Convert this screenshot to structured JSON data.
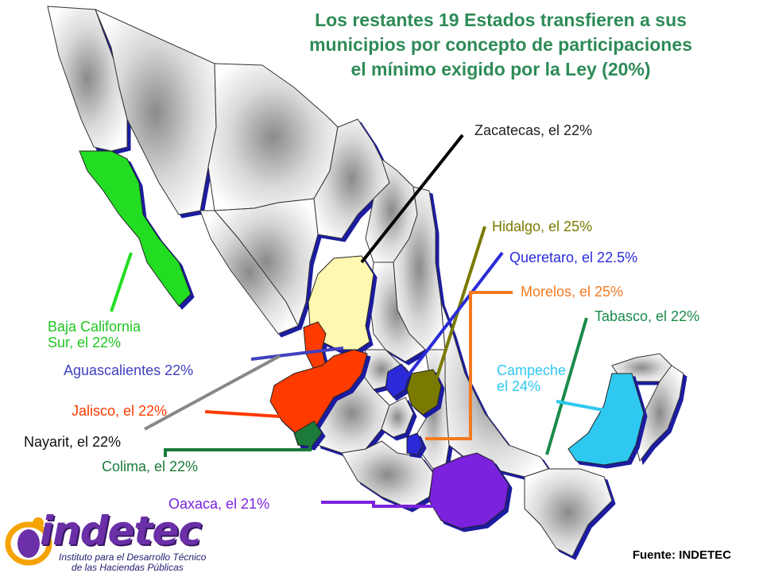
{
  "title": {
    "line1": "Los restantes 19 Estados transfieren a sus",
    "line2": "municipios por concepto de participaciones",
    "line3": "el mínimo exigido por la Ley (20%)"
  },
  "labels": {
    "zacatecas": "Zacatecas, el 22%",
    "hidalgo": "Hidalgo, el 25%",
    "queretaro": "Queretaro, el 22.5%",
    "morelos": "Morelos, el 25%",
    "tabasco": "Tabasco, el 22%",
    "bcs_line1": "Baja California",
    "bcs_line2": "Sur, el 22%",
    "aguascalientes": "Aguascalientes 22%",
    "campeche_line1": "Campeche",
    "campeche_line2": "el 24%",
    "jalisco": "Jalisco, el 22%",
    "nayarit": "Nayarit, el 22%",
    "colima": "Colima, el 22%",
    "oaxaca": "Oaxaca, el 21%"
  },
  "source": "Fuente: INDETEC",
  "logo": {
    "word": "indetec",
    "sub_line1": "Instituto para el Desarrollo Técnico",
    "sub_line2": "de las Haciendas Públicas"
  },
  "colors": {
    "title": "#2e8b57",
    "zacatecas": "#fff8b0",
    "hidalgo": "#7a7a00",
    "queretaro": "#2b2bd8",
    "morelos": "#f47a20",
    "tabasco": "#1a8a4a",
    "bcs": "#22dd22",
    "aguascalientes": "#4040c0",
    "campeche": "#2ec8f0",
    "jalisco": "#ff3a00",
    "nayarit": "#888888",
    "colima": "#1a7a3a",
    "oaxaca": "#7a22dd",
    "logo": "#6b2fa8"
  }
}
